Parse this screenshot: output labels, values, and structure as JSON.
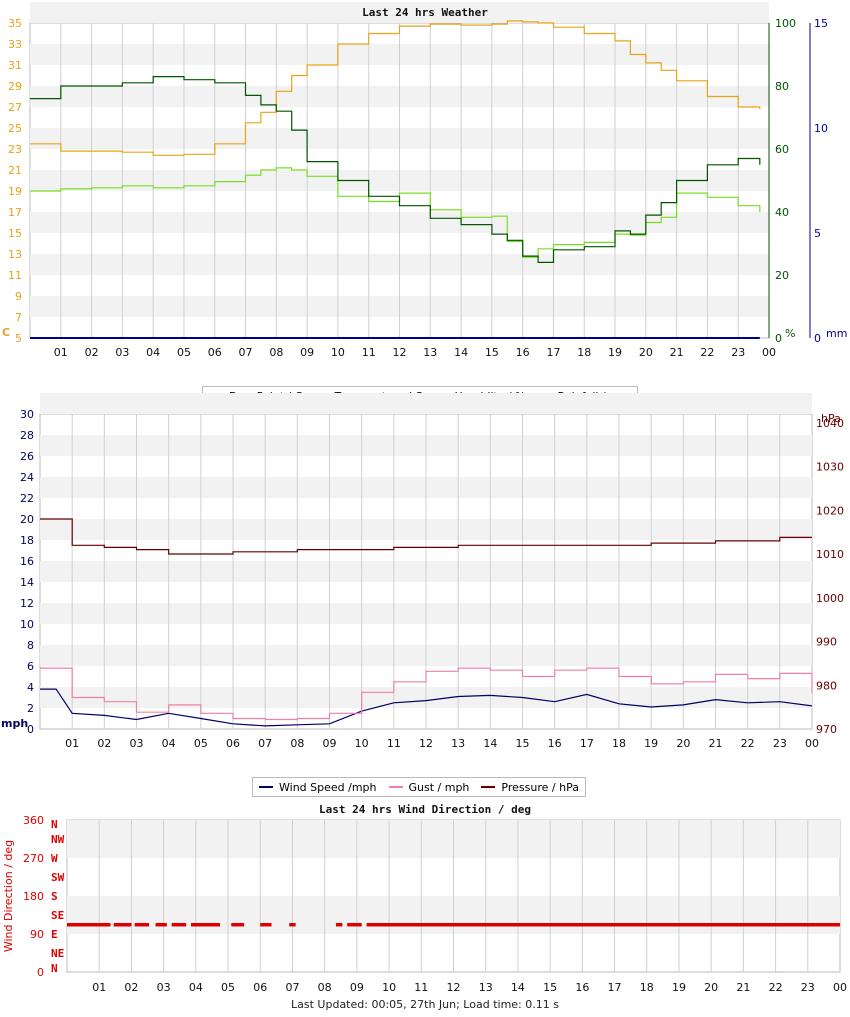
{
  "colors": {
    "dew_point": "#77dd22",
    "temperature": "#e8a317",
    "humidity": "#005500",
    "rainfall": "#000099",
    "wind_speed": "#000066",
    "gust": "#f080a8",
    "pressure": "#660000",
    "wind_dir": "#dd0000",
    "band": "#f2f2f2",
    "grid": "#d0d0d0"
  },
  "footer": "Last Updated: 00:05, 27th Jun; Load time: 0.11 s",
  "chart_data": [
    {
      "type": "line",
      "title": "Last 24 hrs Weather",
      "x_ticks": [
        "01",
        "02",
        "03",
        "04",
        "05",
        "06",
        "07",
        "08",
        "09",
        "10",
        "11",
        "12",
        "13",
        "14",
        "15",
        "16",
        "17",
        "18",
        "19",
        "20",
        "21",
        "22",
        "23",
        "00"
      ],
      "axes": {
        "left": {
          "unit_label": "C",
          "ylim": [
            5,
            35
          ],
          "ticks": [
            "5",
            "7",
            "9",
            "11",
            "13",
            "15",
            "17",
            "19",
            "21",
            "23",
            "25",
            "27",
            "29",
            "31",
            "33",
            "35"
          ]
        },
        "right1": {
          "unit_label": "%",
          "ylim": [
            0,
            100
          ],
          "ticks": [
            "0",
            "20",
            "40",
            "60",
            "80",
            "100"
          ]
        },
        "right2": {
          "unit_label": "mm",
          "ylim": [
            0,
            15
          ],
          "ticks": [
            "0",
            "5",
            "10",
            "15"
          ]
        }
      },
      "x": [
        0,
        1,
        2,
        3,
        4,
        5,
        6,
        7,
        7.5,
        8,
        8.5,
        9,
        10,
        11,
        12,
        13,
        14,
        15,
        15.5,
        16,
        16.5,
        17,
        18,
        19,
        19.5,
        20,
        20.5,
        21,
        22,
        23,
        23.7
      ],
      "series": [
        {
          "name": "Dew Point / C",
          "axis": "left",
          "values": [
            19,
            19.2,
            19.3,
            19.5,
            19.3,
            19.5,
            19.9,
            20.5,
            21,
            21.2,
            21,
            20.4,
            18.5,
            18,
            18.8,
            17.2,
            16.5,
            16.6,
            14.2,
            12.7,
            13.5,
            13.9,
            14.1,
            14.9,
            14.8,
            16,
            16.5,
            18.8,
            18.4,
            17.6,
            17
          ]
        },
        {
          "name": "Temperature / C",
          "axis": "left",
          "values": [
            23.5,
            22.8,
            22.8,
            22.7,
            22.4,
            22.5,
            23.5,
            25.5,
            26.5,
            28.5,
            30,
            31,
            33,
            34,
            34.7,
            34.9,
            34.8,
            34.9,
            35.2,
            35.1,
            35,
            34.6,
            34,
            33.3,
            32,
            31.2,
            30.5,
            29.5,
            28,
            27,
            26.8
          ]
        },
        {
          "name": "Humidity / %",
          "axis": "right1",
          "values": [
            76,
            80,
            80,
            81,
            83,
            82,
            81,
            77,
            74,
            72,
            66,
            56,
            50,
            45,
            42,
            38,
            36,
            33,
            31,
            26,
            24,
            28,
            29,
            34,
            33,
            39,
            43,
            50,
            55,
            57,
            55
          ]
        },
        {
          "name": "Rainfall / mm",
          "axis": "right2",
          "values": [
            0,
            0,
            0,
            0,
            0,
            0,
            0,
            0,
            0,
            0,
            0,
            0,
            0,
            0,
            0,
            0,
            0,
            0,
            0,
            0,
            0,
            0,
            0,
            0,
            0,
            0,
            0,
            0,
            0,
            0,
            0
          ]
        }
      ],
      "legend": {
        "position": "bottom"
      }
    },
    {
      "type": "line",
      "x_ticks": [
        "01",
        "02",
        "03",
        "04",
        "05",
        "06",
        "07",
        "08",
        "09",
        "10",
        "11",
        "12",
        "13",
        "14",
        "15",
        "16",
        "17",
        "18",
        "19",
        "20",
        "21",
        "22",
        "23",
        "00"
      ],
      "axes": {
        "left": {
          "unit_label": "mph",
          "ylim": [
            0,
            30
          ],
          "ticks": [
            "0",
            "2",
            "4",
            "6",
            "8",
            "10",
            "12",
            "14",
            "16",
            "18",
            "20",
            "22",
            "24",
            "26",
            "28",
            "30"
          ]
        },
        "right": {
          "unit_label": "hPa",
          "ylim": [
            970,
            1042
          ],
          "ticks": [
            "970",
            "980",
            "990",
            "1000",
            "1010",
            "1020",
            "1030",
            "1040"
          ]
        }
      },
      "x": [
        0,
        0.5,
        1,
        2,
        3,
        4,
        5,
        6,
        7,
        8,
        9,
        10,
        11,
        12,
        13,
        14,
        15,
        16,
        17,
        18,
        19,
        20,
        21,
        22,
        23,
        24
      ],
      "series": [
        {
          "name": "Wind Speed /mph",
          "axis": "left",
          "values": [
            3.8,
            3.8,
            1.5,
            1.3,
            0.9,
            1.5,
            1,
            0.5,
            0.3,
            0.4,
            0.5,
            1.7,
            2.5,
            2.7,
            3.1,
            3.2,
            3,
            2.6,
            3.3,
            2.4,
            2.1,
            2.3,
            2.8,
            2.5,
            2.6,
            2.2
          ]
        },
        {
          "name": "Gust / mph",
          "axis": "left",
          "values": [
            5.8,
            5.8,
            3,
            2.6,
            1.6,
            2.3,
            1.5,
            1,
            0.9,
            1,
            1.5,
            3.5,
            4.5,
            5.5,
            5.8,
            5.6,
            5,
            5.6,
            5.8,
            5,
            4.3,
            4.5,
            5.2,
            4.8,
            5.3,
            3.4
          ]
        },
        {
          "name": "Pressure / hPa",
          "axis": "right",
          "values": [
            1018,
            1018,
            1012,
            1011.5,
            1011,
            1010,
            1010,
            1010.5,
            1010.5,
            1011,
            1011,
            1011,
            1011.5,
            1011.5,
            1012,
            1012,
            1012,
            1012,
            1012,
            1012,
            1012.5,
            1012.5,
            1013,
            1013,
            1013.8,
            1013.8
          ]
        }
      ],
      "legend": {
        "position": "bottom"
      }
    },
    {
      "type": "scatter",
      "title": "Last 24 hrs Wind Direction / deg",
      "ylabel": "Wind Direction / deg",
      "ylim": [
        0,
        360
      ],
      "y_ticks": [
        "0",
        "90",
        "180",
        "270",
        "360"
      ],
      "compass_labels": [
        "N",
        "NE",
        "E",
        "SE",
        "S",
        "SW",
        "W",
        "NW",
        "N"
      ],
      "x_ticks": [
        "01",
        "02",
        "03",
        "04",
        "05",
        "06",
        "07",
        "08",
        "09",
        "10",
        "11",
        "12",
        "13",
        "14",
        "15",
        "16",
        "17",
        "18",
        "19",
        "20",
        "21",
        "22",
        "23",
        "00"
      ],
      "segments": [
        {
          "x_start": 0.0,
          "x_end": 1.35,
          "direction": 112
        },
        {
          "x_start": 1.45,
          "x_end": 2.0,
          "direction": 112
        },
        {
          "x_start": 2.1,
          "x_end": 2.55,
          "direction": 112
        },
        {
          "x_start": 2.75,
          "x_end": 3.1,
          "direction": 112
        },
        {
          "x_start": 3.25,
          "x_end": 3.7,
          "direction": 112
        },
        {
          "x_start": 3.85,
          "x_end": 4.75,
          "direction": 112
        },
        {
          "x_start": 5.1,
          "x_end": 5.5,
          "direction": 112
        },
        {
          "x_start": 6.0,
          "x_end": 6.35,
          "direction": 112
        },
        {
          "x_start": 6.9,
          "x_end": 7.1,
          "direction": 112
        },
        {
          "x_start": 8.35,
          "x_end": 8.55,
          "direction": 112
        },
        {
          "x_start": 8.7,
          "x_end": 9.15,
          "direction": 112
        },
        {
          "x_start": 9.3,
          "x_end": 24.0,
          "direction": 112
        }
      ]
    }
  ]
}
